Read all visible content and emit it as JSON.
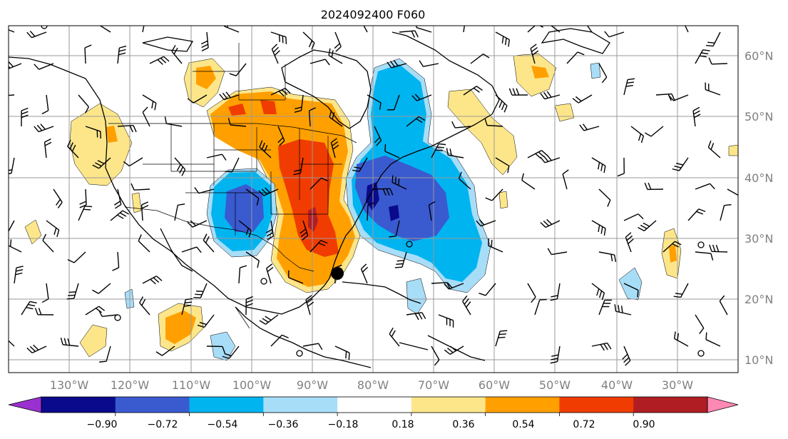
{
  "title": "2024092400 F060",
  "map": {
    "lat_labels": [
      "60°N",
      "50°N",
      "40°N",
      "30°N",
      "20°N",
      "10°N"
    ],
    "lon_labels": [
      "130°W",
      "120°W",
      "110°W",
      "100°W",
      "90°W",
      "80°W",
      "70°W",
      "60°W",
      "50°W",
      "40°W",
      "30°W"
    ],
    "colors": {
      "land_line": "#000000",
      "grid": "#9a9a9a"
    }
  },
  "colorbar": {
    "labels": [
      "−0.90",
      "−0.72",
      "−0.54",
      "−0.36",
      "−0.18",
      "0.18",
      "0.36",
      "0.54",
      "0.72",
      "0.90"
    ],
    "bins": [
      {
        "color": "#9b30d0"
      },
      {
        "color": "#0a0a8c"
      },
      {
        "color": "#3a5ad0"
      },
      {
        "color": "#00b4f0"
      },
      {
        "color": "#a8ddf8"
      },
      {
        "color": "#ffffff"
      },
      {
        "color": "#fde68a"
      },
      {
        "color": "#ffa000"
      },
      {
        "color": "#f03c00"
      },
      {
        "color": "#b01e24"
      },
      {
        "color": "#ff88b4"
      }
    ]
  }
}
